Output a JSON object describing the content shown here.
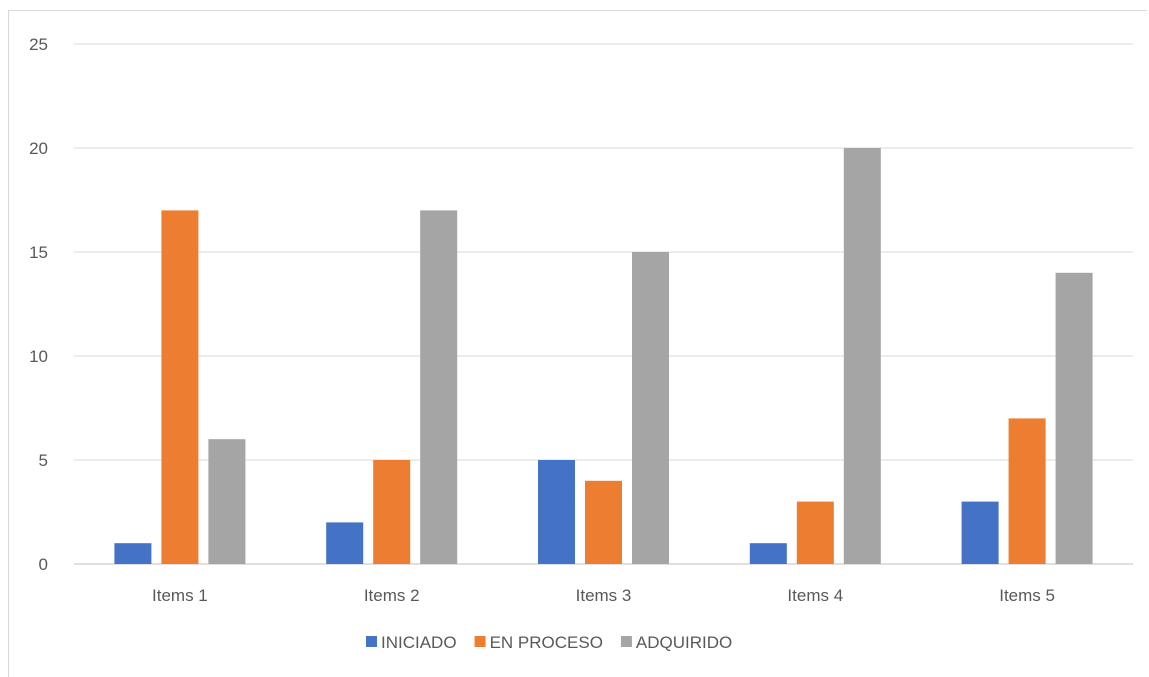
{
  "chart_data": {
    "type": "bar",
    "title": "",
    "xlabel": "",
    "ylabel": "",
    "categories": [
      "Items 1",
      "Items 2",
      "Items 3",
      "Items 4",
      "Items 5"
    ],
    "series": [
      {
        "name": "INICIADO",
        "color": "#4472c4",
        "values": [
          1,
          2,
          5,
          1,
          3
        ]
      },
      {
        "name": "EN PROCESO",
        "color": "#ed7d31",
        "values": [
          17,
          5,
          4,
          3,
          7
        ]
      },
      {
        "name": "ADQUIRIDO",
        "color": "#a5a5a5",
        "values": [
          6,
          17,
          15,
          20,
          14
        ]
      }
    ],
    "ylim": [
      0,
      25
    ],
    "yticks": [
      "0",
      "5",
      "10",
      "15",
      "20",
      "25"
    ],
    "grid": true,
    "legend": "bottom"
  }
}
